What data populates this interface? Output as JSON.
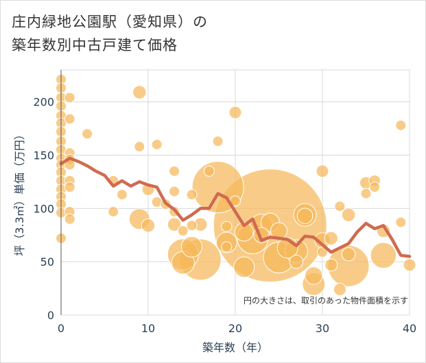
{
  "title_line1": "庄内緑地公園駅（愛知県）の",
  "title_line2": "築年数別中古戸建て価格",
  "chart_data": {
    "type": "scatter",
    "xlabel": "築年数（年）",
    "ylabel": "坪（3.3㎡）単価（万円）",
    "xlim": [
      0,
      40
    ],
    "ylim": [
      0,
      230
    ],
    "xticks": [
      0,
      10,
      20,
      30,
      40
    ],
    "yticks": [
      0,
      50,
      100,
      150,
      200
    ],
    "grid": true,
    "note": "円の大きさは、取引のあった物件面積を示す",
    "bubble_color": "#f5b95a",
    "line_color": "#d06a50",
    "points": [
      {
        "x": 0,
        "y": 221,
        "s": 1
      },
      {
        "x": 0,
        "y": 213,
        "s": 1
      },
      {
        "x": 0,
        "y": 204,
        "s": 1
      },
      {
        "x": 0,
        "y": 196,
        "s": 1
      },
      {
        "x": 0,
        "y": 187,
        "s": 1
      },
      {
        "x": 0,
        "y": 180,
        "s": 1
      },
      {
        "x": 0,
        "y": 172,
        "s": 1
      },
      {
        "x": 0,
        "y": 163,
        "s": 1
      },
      {
        "x": 0,
        "y": 155,
        "s": 1
      },
      {
        "x": 0,
        "y": 147,
        "s": 1
      },
      {
        "x": 0,
        "y": 141,
        "s": 1
      },
      {
        "x": 0,
        "y": 134,
        "s": 1
      },
      {
        "x": 0,
        "y": 126,
        "s": 1
      },
      {
        "x": 0,
        "y": 118,
        "s": 1
      },
      {
        "x": 0,
        "y": 111,
        "s": 1
      },
      {
        "x": 0,
        "y": 104,
        "s": 1
      },
      {
        "x": 0,
        "y": 96,
        "s": 1
      },
      {
        "x": 0,
        "y": 72,
        "s": 1
      },
      {
        "x": 1,
        "y": 204,
        "s": 1
      },
      {
        "x": 1,
        "y": 184,
        "s": 1
      },
      {
        "x": 1,
        "y": 152,
        "s": 1
      },
      {
        "x": 1,
        "y": 146,
        "s": 1
      },
      {
        "x": 1,
        "y": 141,
        "s": 1
      },
      {
        "x": 1,
        "y": 126,
        "s": 1
      },
      {
        "x": 1,
        "y": 120,
        "s": 1
      },
      {
        "x": 1,
        "y": 97,
        "s": 1
      },
      {
        "x": 1,
        "y": 90,
        "s": 1
      },
      {
        "x": 3,
        "y": 170,
        "s": 1
      },
      {
        "x": 6,
        "y": 126,
        "s": 1
      },
      {
        "x": 6,
        "y": 97,
        "s": 1
      },
      {
        "x": 7,
        "y": 113,
        "s": 1
      },
      {
        "x": 9,
        "y": 209,
        "s": 1.3
      },
      {
        "x": 9,
        "y": 158,
        "s": 1
      },
      {
        "x": 9,
        "y": 90,
        "s": 2
      },
      {
        "x": 10,
        "y": 118,
        "s": 1.2
      },
      {
        "x": 10,
        "y": 84,
        "s": 1.3
      },
      {
        "x": 11,
        "y": 160,
        "s": 1
      },
      {
        "x": 11,
        "y": 106,
        "s": 1
      },
      {
        "x": 12,
        "y": 104,
        "s": 1
      },
      {
        "x": 13,
        "y": 135,
        "s": 1
      },
      {
        "x": 13,
        "y": 116,
        "s": 1
      },
      {
        "x": 13,
        "y": 97,
        "s": 1
      },
      {
        "x": 13,
        "y": 85,
        "s": 1.3
      },
      {
        "x": 14,
        "y": 79,
        "s": 1
      },
      {
        "x": 14,
        "y": 57,
        "s": 3
      },
      {
        "x": 14,
        "y": 49,
        "s": 2.2
      },
      {
        "x": 15,
        "y": 113,
        "s": 1
      },
      {
        "x": 15,
        "y": 84,
        "s": 1
      },
      {
        "x": 15,
        "y": 64,
        "s": 2
      },
      {
        "x": 16,
        "y": 85,
        "s": 1.3
      },
      {
        "x": 16,
        "y": 52,
        "s": 4
      },
      {
        "x": 17,
        "y": 135,
        "s": 1
      },
      {
        "x": 18,
        "y": 163,
        "s": 1
      },
      {
        "x": 18,
        "y": 120,
        "s": 5
      },
      {
        "x": 19,
        "y": 83,
        "s": 1
      },
      {
        "x": 19,
        "y": 68,
        "s": 2
      },
      {
        "x": 19,
        "y": 64,
        "s": 1
      },
      {
        "x": 20,
        "y": 190,
        "s": 1.2
      },
      {
        "x": 20,
        "y": 107,
        "s": 1
      },
      {
        "x": 21,
        "y": 78,
        "s": 1.8
      },
      {
        "x": 21,
        "y": 45,
        "s": 2
      },
      {
        "x": 22,
        "y": 72,
        "s": 3
      },
      {
        "x": 23,
        "y": 84,
        "s": 2.2
      },
      {
        "x": 23,
        "y": 75,
        "s": 1.5
      },
      {
        "x": 24,
        "y": 84,
        "s": 11
      },
      {
        "x": 24,
        "y": 87,
        "s": 1.8
      },
      {
        "x": 25,
        "y": 79,
        "s": 1.6
      },
      {
        "x": 25,
        "y": 54,
        "s": 3
      },
      {
        "x": 26,
        "y": 63,
        "s": 2
      },
      {
        "x": 27,
        "y": 60,
        "s": 2.2
      },
      {
        "x": 27,
        "y": 50,
        "s": 1.3
      },
      {
        "x": 28,
        "y": 94,
        "s": 2.2
      },
      {
        "x": 28,
        "y": 93,
        "s": 1.5
      },
      {
        "x": 29,
        "y": 37,
        "s": 1.7
      },
      {
        "x": 29,
        "y": 29,
        "s": 2.2
      },
      {
        "x": 30,
        "y": 135,
        "s": 1.2
      },
      {
        "x": 30,
        "y": 70,
        "s": 1.5
      },
      {
        "x": 30,
        "y": 59,
        "s": 1
      },
      {
        "x": 31,
        "y": 72,
        "s": 1.3
      },
      {
        "x": 31,
        "y": 47,
        "s": 1.2
      },
      {
        "x": 32,
        "y": 102,
        "s": 1
      },
      {
        "x": 32,
        "y": 24,
        "s": 1.2
      },
      {
        "x": 33,
        "y": 94,
        "s": 1.3
      },
      {
        "x": 33,
        "y": 57,
        "s": 1.3
      },
      {
        "x": 33,
        "y": 46,
        "s": 4
      },
      {
        "x": 35,
        "y": 124,
        "s": 1.2
      },
      {
        "x": 35,
        "y": 114,
        "s": 1
      },
      {
        "x": 36,
        "y": 126,
        "s": 1.1
      },
      {
        "x": 36,
        "y": 120,
        "s": 1
      },
      {
        "x": 37,
        "y": 79,
        "s": 1.3
      },
      {
        "x": 37,
        "y": 56,
        "s": 2.5
      },
      {
        "x": 39,
        "y": 178,
        "s": 1
      },
      {
        "x": 39,
        "y": 87,
        "s": 1
      },
      {
        "x": 40,
        "y": 47,
        "s": 1.2
      }
    ],
    "trend": {
      "x": [
        0,
        1,
        2,
        3,
        4,
        5,
        6,
        7,
        8,
        9,
        10,
        11,
        12,
        13,
        14,
        15,
        16,
        17,
        18,
        19,
        20,
        21,
        22,
        23,
        24,
        25,
        26,
        27,
        28,
        29,
        30,
        31,
        32,
        33,
        34,
        35,
        36,
        37,
        38,
        39,
        40
      ],
      "y": [
        142,
        147,
        144,
        140,
        135,
        131,
        121,
        126,
        121,
        125,
        122,
        120,
        105,
        99,
        89,
        94,
        100,
        100,
        114,
        110,
        97,
        84,
        90,
        70,
        73,
        72,
        71,
        65,
        74,
        73,
        66,
        59,
        63,
        67,
        78,
        86,
        81,
        84,
        71,
        56,
        55
      ]
    }
  }
}
